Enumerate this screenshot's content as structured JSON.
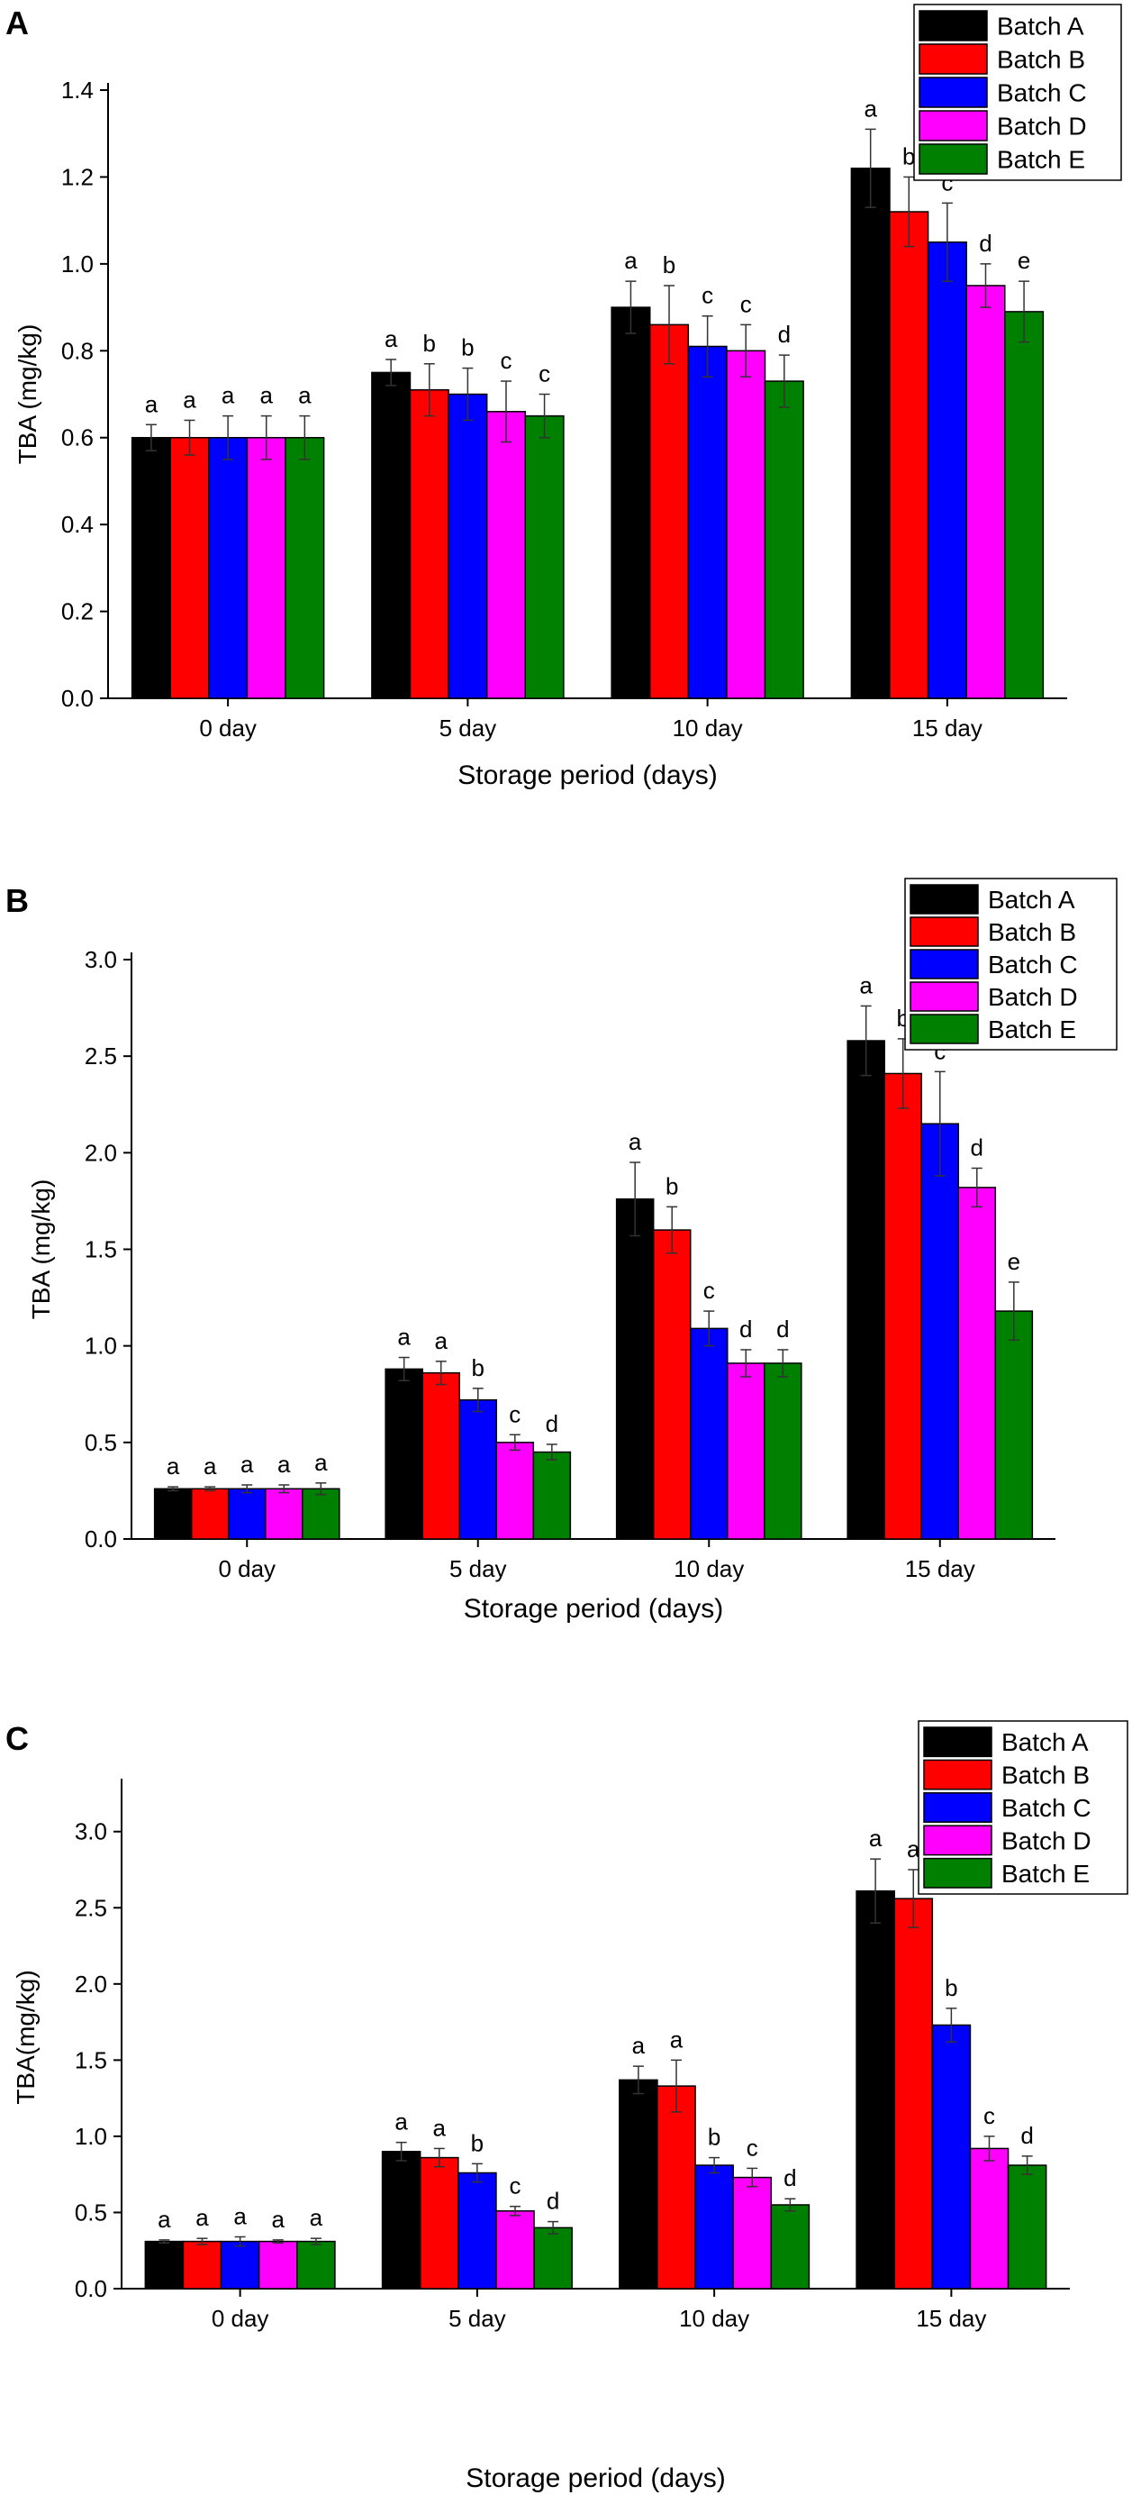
{
  "colors": {
    "Batch A": "#000000",
    "Batch B": "#ff0000",
    "Batch C": "#0000ff",
    "Batch D": "#ff00ff",
    "Batch E": "#008000"
  },
  "chart_data": [
    {
      "type": "bar",
      "panel_label": "A",
      "categories": [
        "0 day",
        "5 day",
        "10 day",
        "15 day"
      ],
      "xlabel": "Storage period (days)",
      "ylabel": "TBA (mg/kg)",
      "ylim": [
        0,
        1.4
      ],
      "yticks": [
        "0.0",
        "0.2",
        "0.4",
        "0.6",
        "0.8",
        "1.0",
        "1.2",
        "1.4"
      ],
      "legend_position": "top-right",
      "series": [
        {
          "name": "Batch A",
          "values": [
            0.6,
            0.75,
            0.9,
            1.22
          ],
          "errors": [
            0.03,
            0.03,
            0.06,
            0.09
          ],
          "letters": [
            "a",
            "a",
            "a",
            "a"
          ]
        },
        {
          "name": "Batch B",
          "values": [
            0.6,
            0.71,
            0.86,
            1.12
          ],
          "errors": [
            0.04,
            0.06,
            0.09,
            0.08
          ],
          "letters": [
            "a",
            "b",
            "b",
            "b"
          ]
        },
        {
          "name": "Batch C",
          "values": [
            0.6,
            0.7,
            0.81,
            1.05
          ],
          "errors": [
            0.05,
            0.06,
            0.07,
            0.09
          ],
          "letters": [
            "a",
            "b",
            "c",
            "c"
          ]
        },
        {
          "name": "Batch D",
          "values": [
            0.6,
            0.66,
            0.8,
            0.95
          ],
          "errors": [
            0.05,
            0.07,
            0.06,
            0.05
          ],
          "letters": [
            "a",
            "c",
            "c",
            "d"
          ]
        },
        {
          "name": "Batch E",
          "values": [
            0.6,
            0.65,
            0.73,
            0.89
          ],
          "errors": [
            0.05,
            0.05,
            0.06,
            0.07
          ],
          "letters": [
            "a",
            "c",
            "d",
            "e"
          ]
        }
      ]
    },
    {
      "type": "bar",
      "panel_label": "B",
      "categories": [
        "0 day",
        "5 day",
        "10 day",
        "15 day"
      ],
      "xlabel": "Storage period (days)",
      "ylabel": "TBA (mg/kg)",
      "ylim": [
        0,
        3.0
      ],
      "yticks": [
        "0.0",
        "0.5",
        "1.0",
        "1.5",
        "2.0",
        "2.5",
        "3.0"
      ],
      "legend_position": "top-right",
      "series": [
        {
          "name": "Batch A",
          "values": [
            0.26,
            0.88,
            1.76,
            2.58
          ],
          "errors": [
            0.01,
            0.06,
            0.19,
            0.18
          ],
          "letters": [
            "a",
            "a",
            "a",
            "a"
          ]
        },
        {
          "name": "Batch B",
          "values": [
            0.26,
            0.86,
            1.6,
            2.41
          ],
          "errors": [
            0.01,
            0.06,
            0.12,
            0.18
          ],
          "letters": [
            "a",
            "a",
            "b",
            "b"
          ]
        },
        {
          "name": "Batch C",
          "values": [
            0.26,
            0.72,
            1.09,
            2.15
          ],
          "errors": [
            0.02,
            0.06,
            0.09,
            0.27
          ],
          "letters": [
            "a",
            "b",
            "c",
            "c"
          ]
        },
        {
          "name": "Batch D",
          "values": [
            0.26,
            0.5,
            0.91,
            1.82
          ],
          "errors": [
            0.02,
            0.04,
            0.07,
            0.1
          ],
          "letters": [
            "a",
            "c",
            "d",
            "d"
          ]
        },
        {
          "name": "Batch E",
          "values": [
            0.26,
            0.45,
            0.91,
            1.18
          ],
          "errors": [
            0.03,
            0.04,
            0.07,
            0.15
          ],
          "letters": [
            "a",
            "d",
            "d",
            "e"
          ]
        }
      ]
    },
    {
      "type": "bar",
      "panel_label": "C",
      "categories": [
        "0 day",
        "5 day",
        "10 day",
        "15 day"
      ],
      "xlabel": "Storage period (days)",
      "ylabel": "TBA(mg/kg)",
      "ylim": [
        0,
        3.3
      ],
      "yticks": [
        "0.0",
        "0.5",
        "1.0",
        "1.5",
        "2.0",
        "2.5",
        "3.0"
      ],
      "legend_position": "top-right",
      "series": [
        {
          "name": "Batch A",
          "values": [
            0.31,
            0.9,
            1.37,
            2.61
          ],
          "errors": [
            0.01,
            0.06,
            0.09,
            0.21
          ],
          "letters": [
            "a",
            "a",
            "a",
            "a"
          ]
        },
        {
          "name": "Batch B",
          "values": [
            0.31,
            0.86,
            1.33,
            2.56
          ],
          "errors": [
            0.02,
            0.06,
            0.17,
            0.19
          ],
          "letters": [
            "a",
            "a",
            "a",
            "a"
          ]
        },
        {
          "name": "Batch C",
          "values": [
            0.31,
            0.76,
            0.81,
            1.73
          ],
          "errors": [
            0.03,
            0.06,
            0.05,
            0.11
          ],
          "letters": [
            "a",
            "b",
            "b",
            "b"
          ]
        },
        {
          "name": "Batch D",
          "values": [
            0.31,
            0.51,
            0.73,
            0.92
          ],
          "errors": [
            0.01,
            0.03,
            0.06,
            0.08
          ],
          "letters": [
            "a",
            "c",
            "c",
            "c"
          ]
        },
        {
          "name": "Batch E",
          "values": [
            0.31,
            0.4,
            0.55,
            0.81
          ],
          "errors": [
            0.02,
            0.04,
            0.04,
            0.06
          ],
          "letters": [
            "a",
            "d",
            "d",
            "d"
          ]
        }
      ]
    }
  ]
}
